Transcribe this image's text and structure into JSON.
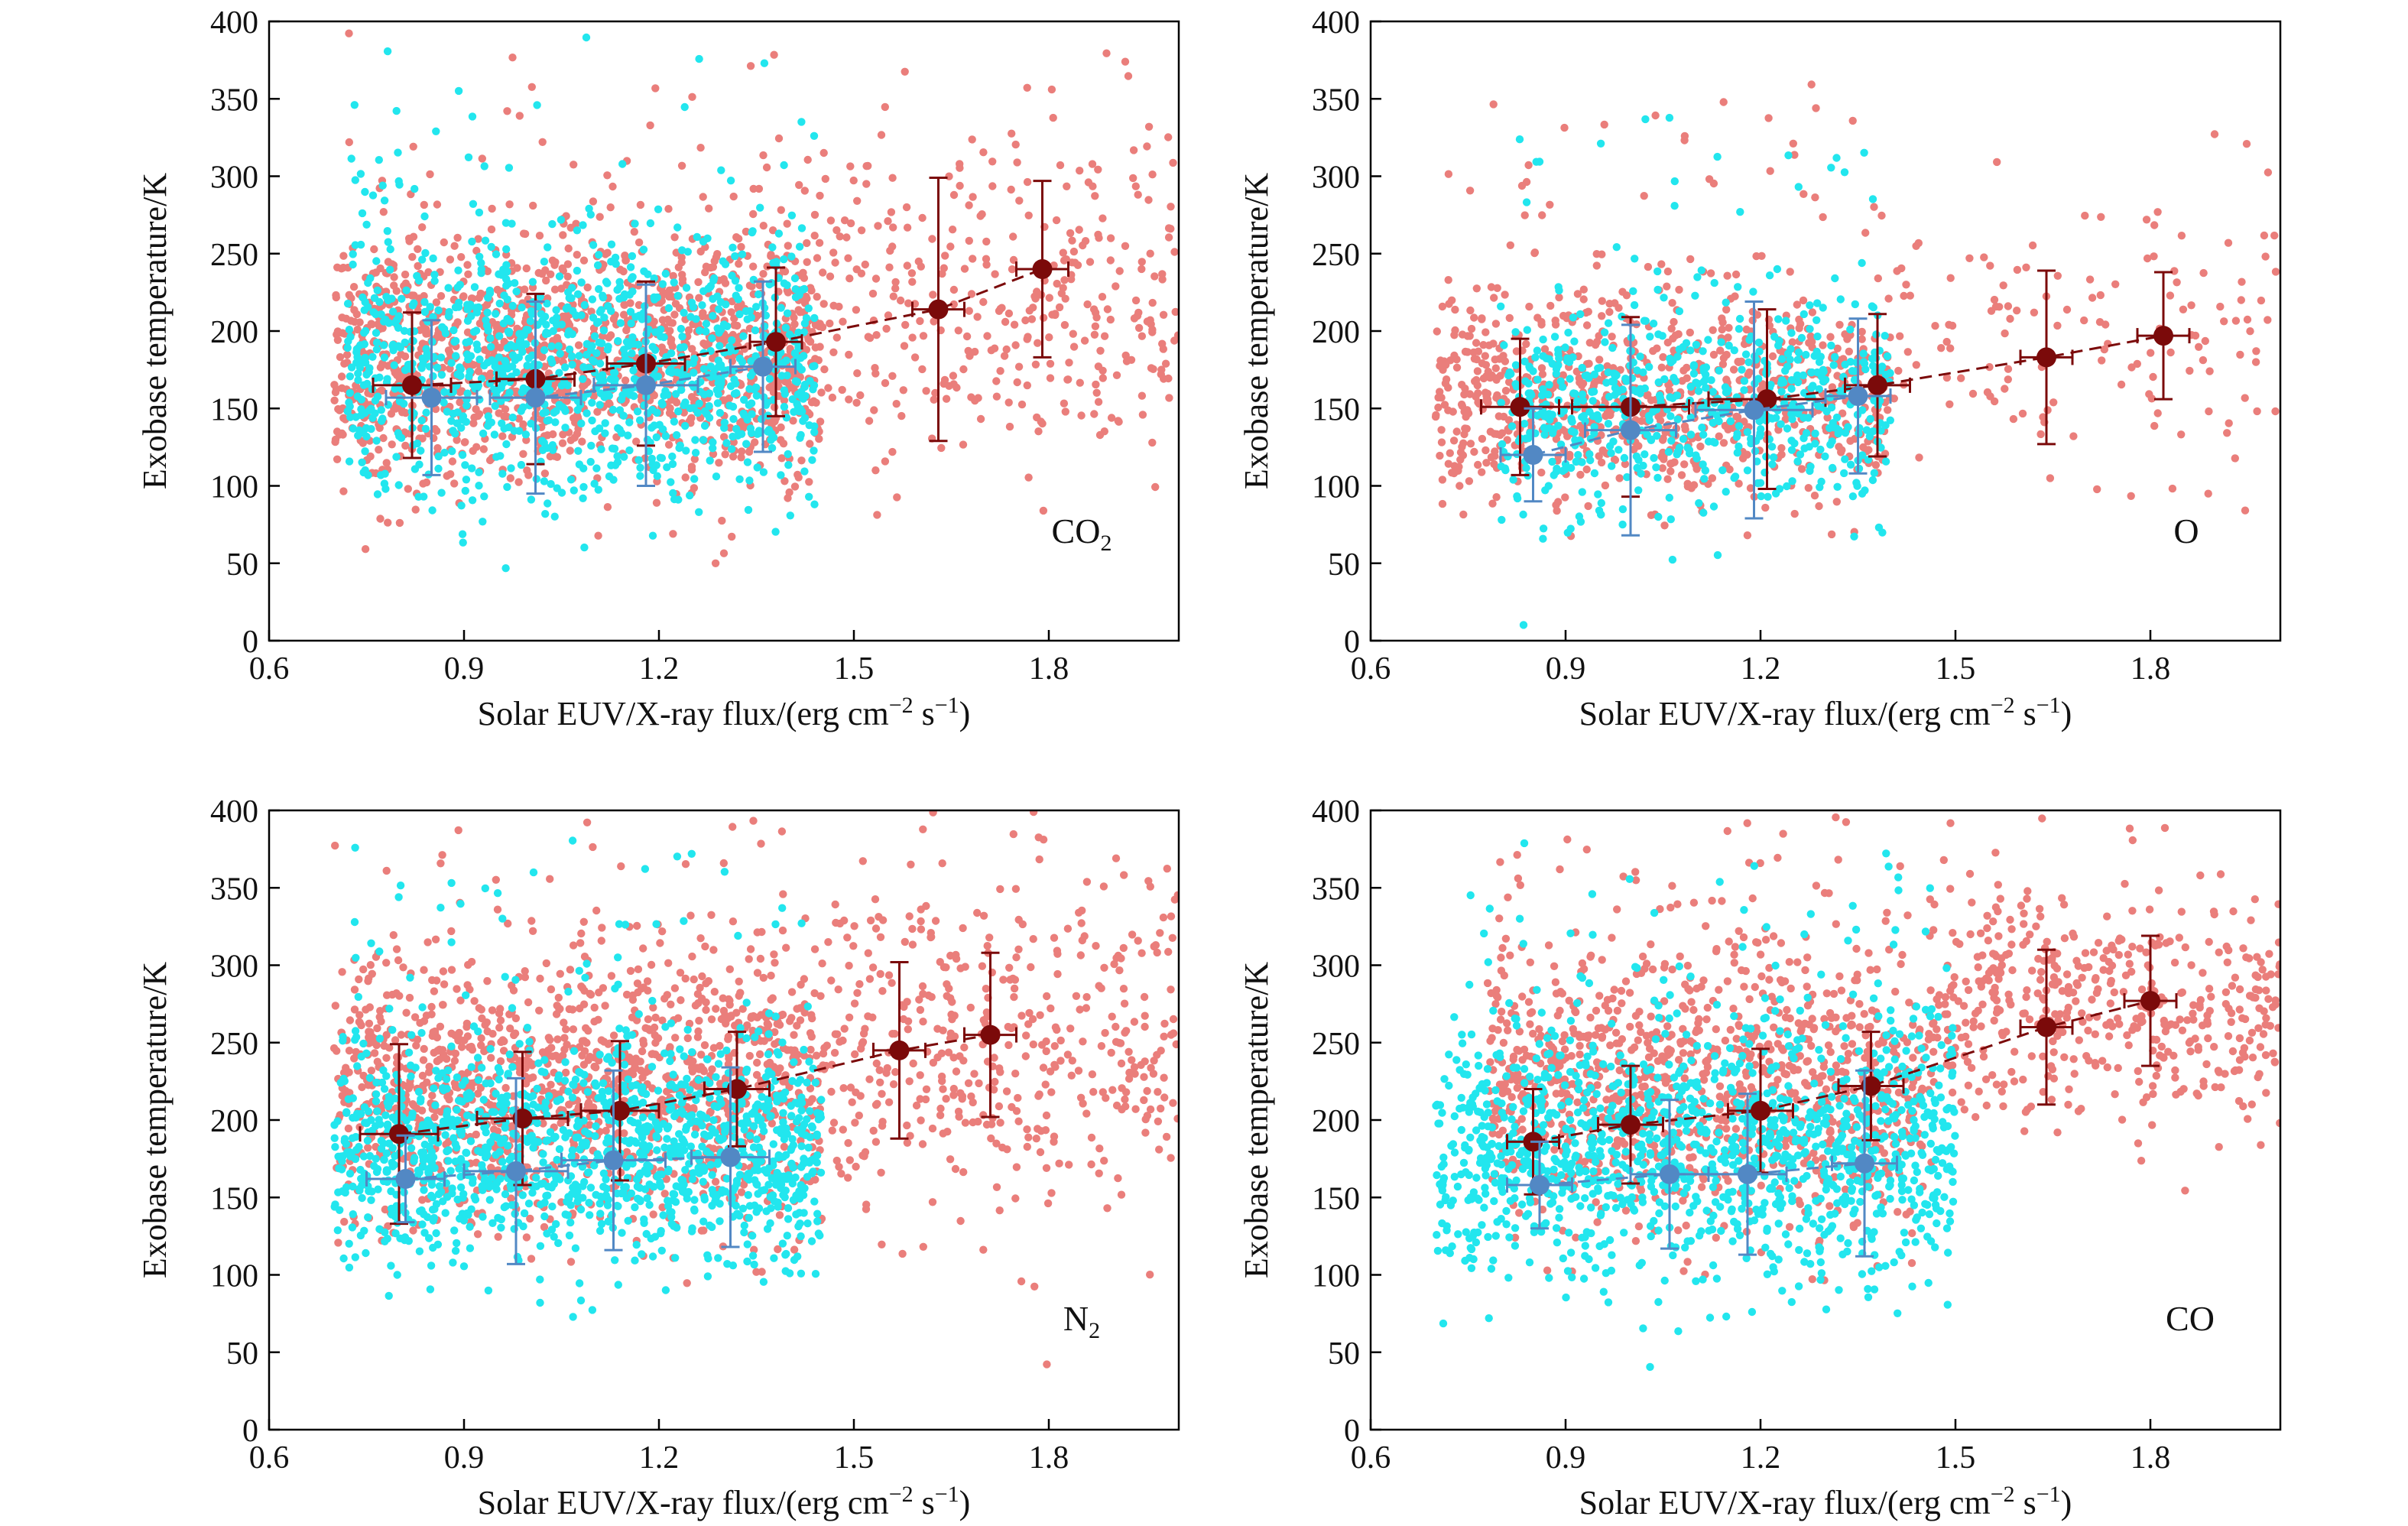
{
  "figure": {
    "colors": {
      "scatter_red": "#ea7e7b",
      "scatter_cyan": "#22e6ee",
      "mean_red": "#7b0a0a",
      "mean_blue": "#5288c4"
    }
  },
  "chart_data": [
    {
      "type": "scatter",
      "species_parts": [
        "CO",
        "2"
      ],
      "xlabel_parts": [
        "Solar EUV/X-ray flux/(erg cm",
        "−2",
        " s",
        "−1",
        ")"
      ],
      "ylabel": "Exobase temperature/K",
      "xlim": [
        0.6,
        2.0
      ],
      "ylim": [
        0,
        400
      ],
      "xticks": [
        0.6,
        0.9,
        1.2,
        1.5,
        1.8
      ],
      "yticks": [
        0,
        50,
        100,
        150,
        200,
        250,
        300,
        350,
        400
      ],
      "xtick_labels": [
        "0.6",
        "0.9",
        "1.2",
        "1.5",
        "1.8"
      ],
      "ytick_labels": [
        "0",
        "50",
        "100",
        "150",
        "200",
        "250",
        "300",
        "350",
        "400"
      ],
      "series": [
        {
          "color": "#7b0a0a",
          "style": "dashed",
          "x": [
            0.82,
            1.01,
            1.18,
            1.38,
            1.63,
            1.79
          ],
          "y": [
            165,
            169,
            179,
            193,
            214,
            240
          ],
          "xerr": [
            0.06,
            0.06,
            0.06,
            0.04,
            0.04,
            0.04
          ],
          "yerr": [
            47,
            55,
            53,
            48,
            85,
            57
          ]
        },
        {
          "color": "#5288c4",
          "style": "dashed",
          "x": [
            0.85,
            1.01,
            1.18,
            1.36
          ],
          "y": [
            157,
            157,
            165,
            177
          ],
          "xerr": [
            0.07,
            0.07,
            0.08,
            0.05
          ],
          "yerr": [
            50,
            62,
            65,
            55
          ]
        }
      ]
    },
    {
      "type": "scatter",
      "species_parts": [
        "O"
      ],
      "xlabel_parts": [
        "Solar EUV/X-ray flux/(erg cm",
        "−2",
        " s",
        "−1",
        ")"
      ],
      "ylabel": "Exobase temperature/K",
      "xlim": [
        0.6,
        2.0
      ],
      "ylim": [
        0,
        400
      ],
      "xticks": [
        0.6,
        0.9,
        1.2,
        1.5,
        1.8
      ],
      "yticks": [
        0,
        50,
        100,
        150,
        200,
        250,
        300,
        350,
        400
      ],
      "xtick_labels": [
        "0.6",
        "0.9",
        "1.2",
        "1.5",
        "1.8"
      ],
      "ytick_labels": [
        "0",
        "50",
        "100",
        "150",
        "200",
        "250",
        "300",
        "350",
        "400"
      ],
      "series": [
        {
          "color": "#7b0a0a",
          "style": "dashed",
          "x": [
            0.83,
            1.0,
            1.21,
            1.38,
            1.64,
            1.82
          ],
          "y": [
            151,
            151,
            156,
            165,
            183,
            197
          ],
          "xerr": [
            0.06,
            0.09,
            0.09,
            0.05,
            0.04,
            0.04
          ],
          "yerr": [
            44,
            58,
            58,
            46,
            56,
            41
          ]
        },
        {
          "color": "#5288c4",
          "style": "dashed",
          "x": [
            0.85,
            1.0,
            1.19,
            1.35
          ],
          "y": [
            120,
            136,
            149,
            158
          ],
          "xerr": [
            0.05,
            0.07,
            0.09,
            0.05
          ],
          "yerr": [
            30,
            68,
            70,
            50
          ]
        }
      ]
    },
    {
      "type": "scatter",
      "species_parts": [
        "N",
        "2"
      ],
      "xlabel_parts": [
        "Solar EUV/X-ray flux/(erg cm",
        "−2",
        " s",
        "−1",
        ")"
      ],
      "ylabel": "Exobase temperature/K",
      "xlim": [
        0.6,
        2.0
      ],
      "ylim": [
        0,
        400
      ],
      "xticks": [
        0.6,
        0.9,
        1.2,
        1.5,
        1.8
      ],
      "yticks": [
        0,
        50,
        100,
        150,
        200,
        250,
        300,
        350,
        400
      ],
      "xtick_labels": [
        "0.6",
        "0.9",
        "1.2",
        "1.5",
        "1.8"
      ],
      "ytick_labels": [
        "0",
        "50",
        "100",
        "150",
        "200",
        "250",
        "300",
        "350",
        "400"
      ],
      "series": [
        {
          "color": "#7b0a0a",
          "style": "dashed",
          "x": [
            0.8,
            0.99,
            1.14,
            1.32,
            1.57,
            1.71
          ],
          "y": [
            191,
            201,
            206,
            220,
            245,
            255
          ],
          "xerr": [
            0.06,
            0.07,
            0.06,
            0.05,
            0.04,
            0.04
          ],
          "yerr": [
            58,
            43,
            45,
            37,
            57,
            53
          ]
        },
        {
          "color": "#5288c4",
          "style": "dashed",
          "x": [
            0.81,
            0.98,
            1.13,
            1.31
          ],
          "y": [
            162,
            167,
            174,
            176
          ],
          "xerr": [
            0.06,
            0.08,
            0.08,
            0.06
          ],
          "yerr": [
            28,
            60,
            58,
            58
          ]
        }
      ]
    },
    {
      "type": "scatter",
      "species_parts": [
        "CO"
      ],
      "xlabel_parts": [
        "Solar EUV/X-ray flux/(erg cm",
        "−2",
        " s",
        "−1",
        ")"
      ],
      "ylabel": "Exobase temperature/K",
      "xlim": [
        0.6,
        2.0
      ],
      "ylim": [
        0,
        400
      ],
      "xticks": [
        0.6,
        0.9,
        1.2,
        1.5,
        1.8
      ],
      "yticks": [
        0,
        50,
        100,
        150,
        200,
        250,
        300,
        350,
        400
      ],
      "xtick_labels": [
        "0.6",
        "0.9",
        "1.2",
        "1.5",
        "1.8"
      ],
      "ytick_labels": [
        "0",
        "50",
        "100",
        "150",
        "200",
        "250",
        "300",
        "350",
        "400"
      ],
      "series": [
        {
          "color": "#7b0a0a",
          "style": "dashed",
          "x": [
            0.85,
            1.0,
            1.2,
            1.37,
            1.64,
            1.8
          ],
          "y": [
            186,
            197,
            206,
            222,
            260,
            277
          ],
          "xerr": [
            0.04,
            0.05,
            0.05,
            0.05,
            0.04,
            0.04
          ],
          "yerr": [
            34,
            38,
            40,
            35,
            50,
            42
          ]
        },
        {
          "color": "#5288c4",
          "style": "dashed",
          "x": [
            0.86,
            1.06,
            1.18,
            1.36
          ],
          "y": [
            158,
            165,
            165,
            172
          ],
          "xerr": [
            0.05,
            0.06,
            0.06,
            0.05
          ],
          "yerr": [
            28,
            48,
            52,
            60
          ]
        }
      ]
    }
  ]
}
